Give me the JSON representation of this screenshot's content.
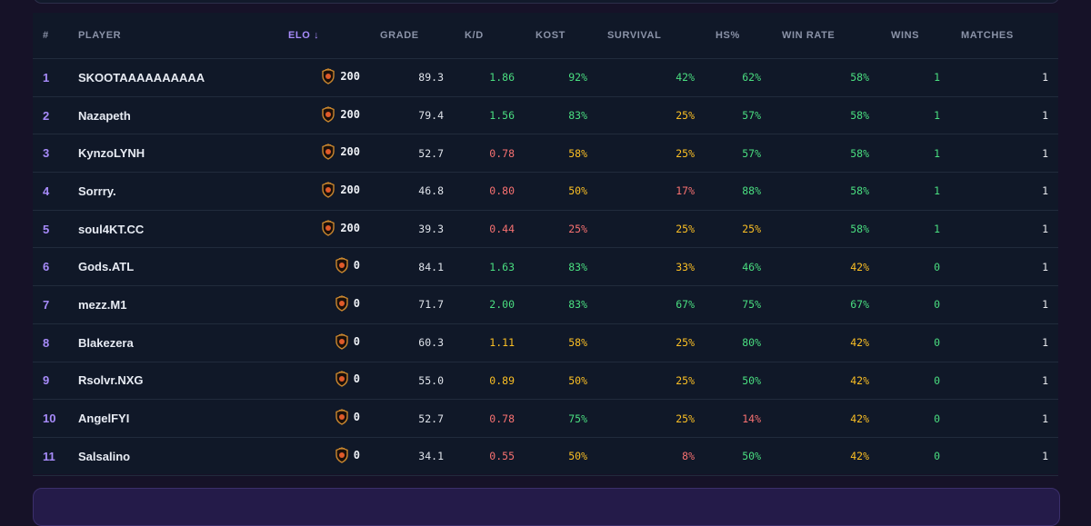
{
  "columns": {
    "num": "#",
    "player": "PLAYER",
    "elo": "ELO ↓",
    "grade": "GRADE",
    "kd": "K/D",
    "kost": "KOST",
    "survival": "SURVIVAL",
    "hs": "HS%",
    "winrate": "WIN RATE",
    "wins": "WINS",
    "matches": "MATCHES"
  },
  "colors": {
    "accent": "#a78bfa",
    "good": "#4ade80",
    "mid": "#fbbf24",
    "bad": "#f87171"
  },
  "rank_icon": "rank-shield-icon",
  "rows": [
    {
      "rank": "1",
      "player": "SKOOTAAAAAAAAAA",
      "elo": "200",
      "grade": "89.3",
      "kd": "1.86",
      "kd_c": "green",
      "kost": "92%",
      "kost_c": "green",
      "survival": "42%",
      "survival_c": "green",
      "hs": "62%",
      "hs_c": "green",
      "winrate": "58%",
      "winrate_c": "green",
      "wins": "1",
      "matches": "1"
    },
    {
      "rank": "2",
      "player": "Nazapeth",
      "elo": "200",
      "grade": "79.4",
      "kd": "1.56",
      "kd_c": "green",
      "kost": "83%",
      "kost_c": "green",
      "survival": "25%",
      "survival_c": "yellow",
      "hs": "57%",
      "hs_c": "green",
      "winrate": "58%",
      "winrate_c": "green",
      "wins": "1",
      "matches": "1"
    },
    {
      "rank": "3",
      "player": "KynzoLYNH",
      "elo": "200",
      "grade": "52.7",
      "kd": "0.78",
      "kd_c": "red",
      "kost": "58%",
      "kost_c": "yellow",
      "survival": "25%",
      "survival_c": "yellow",
      "hs": "57%",
      "hs_c": "green",
      "winrate": "58%",
      "winrate_c": "green",
      "wins": "1",
      "matches": "1"
    },
    {
      "rank": "4",
      "player": "Sorrry.",
      "elo": "200",
      "grade": "46.8",
      "kd": "0.80",
      "kd_c": "red",
      "kost": "50%",
      "kost_c": "yellow",
      "survival": "17%",
      "survival_c": "red",
      "hs": "88%",
      "hs_c": "green",
      "winrate": "58%",
      "winrate_c": "green",
      "wins": "1",
      "matches": "1"
    },
    {
      "rank": "5",
      "player": "soul4KT.CC",
      "elo": "200",
      "grade": "39.3",
      "kd": "0.44",
      "kd_c": "red",
      "kost": "25%",
      "kost_c": "red",
      "survival": "25%",
      "survival_c": "yellow",
      "hs": "25%",
      "hs_c": "yellow",
      "winrate": "58%",
      "winrate_c": "green",
      "wins": "1",
      "matches": "1"
    },
    {
      "rank": "6",
      "player": "Gods.ATL",
      "elo": "0",
      "grade": "84.1",
      "kd": "1.63",
      "kd_c": "green",
      "kost": "83%",
      "kost_c": "green",
      "survival": "33%",
      "survival_c": "yellow",
      "hs": "46%",
      "hs_c": "green",
      "winrate": "42%",
      "winrate_c": "yellow",
      "wins": "0",
      "matches": "1"
    },
    {
      "rank": "7",
      "player": "mezz.M1",
      "elo": "0",
      "grade": "71.7",
      "kd": "2.00",
      "kd_c": "green",
      "kost": "83%",
      "kost_c": "green",
      "survival": "67%",
      "survival_c": "green",
      "hs": "75%",
      "hs_c": "green",
      "winrate": "67%",
      "winrate_c": "green",
      "wins": "0",
      "matches": "1"
    },
    {
      "rank": "8",
      "player": "Blakezera",
      "elo": "0",
      "grade": "60.3",
      "kd": "1.11",
      "kd_c": "yellow",
      "kost": "58%",
      "kost_c": "yellow",
      "survival": "25%",
      "survival_c": "yellow",
      "hs": "80%",
      "hs_c": "green",
      "winrate": "42%",
      "winrate_c": "yellow",
      "wins": "0",
      "matches": "1"
    },
    {
      "rank": "9",
      "player": "Rsolvr.NXG",
      "elo": "0",
      "grade": "55.0",
      "kd": "0.89",
      "kd_c": "yellow",
      "kost": "50%",
      "kost_c": "yellow",
      "survival": "25%",
      "survival_c": "yellow",
      "hs": "50%",
      "hs_c": "green",
      "winrate": "42%",
      "winrate_c": "yellow",
      "wins": "0",
      "matches": "1"
    },
    {
      "rank": "10",
      "player": "AngelFYI",
      "elo": "0",
      "grade": "52.7",
      "kd": "0.78",
      "kd_c": "red",
      "kost": "75%",
      "kost_c": "green",
      "survival": "25%",
      "survival_c": "yellow",
      "hs": "14%",
      "hs_c": "red",
      "winrate": "42%",
      "winrate_c": "yellow",
      "wins": "0",
      "matches": "1"
    },
    {
      "rank": "11",
      "player": "Salsalino",
      "elo": "0",
      "grade": "34.1",
      "kd": "0.55",
      "kd_c": "red",
      "kost": "50%",
      "kost_c": "yellow",
      "survival": "8%",
      "survival_c": "red",
      "hs": "50%",
      "hs_c": "green",
      "winrate": "42%",
      "winrate_c": "yellow",
      "wins": "0",
      "matches": "1"
    }
  ]
}
